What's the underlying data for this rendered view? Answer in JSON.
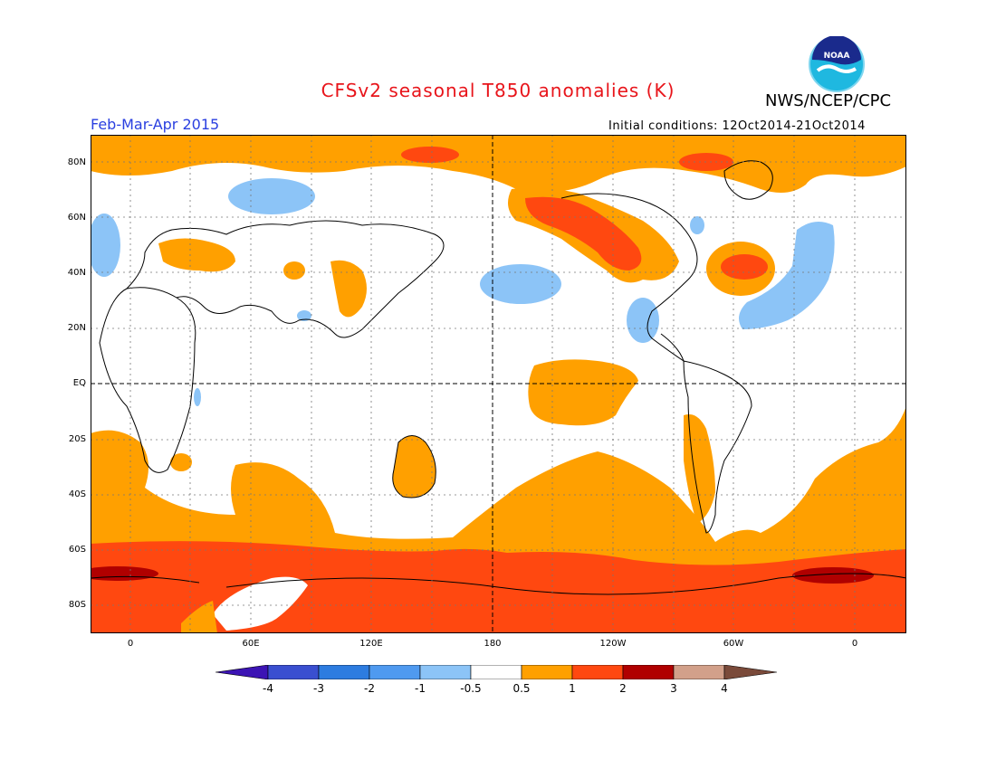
{
  "header": {
    "title": "CFSv2 seasonal T850 anomalies (K)",
    "agency": "NWS/NCEP/CPC",
    "period": "Feb-Mar-Apr 2015",
    "initial_conditions": "Initial conditions: 12Oct2014-21Oct2014",
    "logo_text": "NOAA"
  },
  "map": {
    "lat_labels": [
      "80N",
      "60N",
      "40N",
      "20N",
      "EQ",
      "20S",
      "40S",
      "60S",
      "80S"
    ],
    "lon_labels": [
      "0",
      "60E",
      "120E",
      "180",
      "120W",
      "60W",
      "0"
    ]
  },
  "colorbar": {
    "labels": [
      "-4",
      "-3",
      "-2",
      "-1",
      "-0.5",
      "0.5",
      "1",
      "2",
      "3",
      "4"
    ],
    "colors": [
      "#3c14b4",
      "#3a4fd0",
      "#2d7ce0",
      "#4f9af0",
      "#8cc4f7",
      "#ffffff",
      "#ffa000",
      "#ff4810",
      "#b00000",
      "#d2a08a",
      "#7a4a3a"
    ]
  }
}
